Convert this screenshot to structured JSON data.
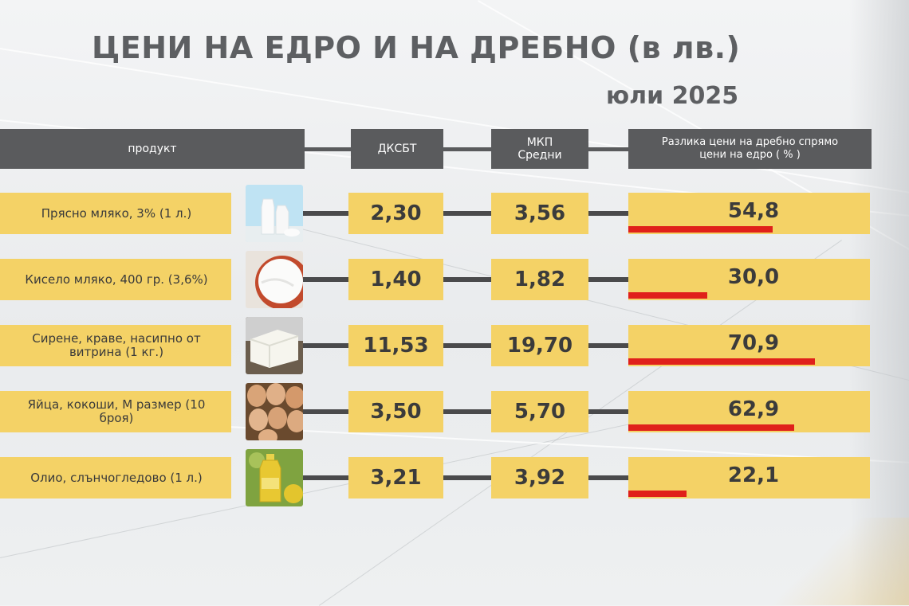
{
  "title": "ЦЕНИ НА ЕДРО И НА ДРЕБНО (в лв.)",
  "subtitle": "юли 2025",
  "headers": {
    "product": "продукт",
    "dksbt": "ДКСБТ",
    "mkp": "МКП Средни",
    "diff": "Разлика цени на дребно спрямо цени на едро ( % )"
  },
  "colors": {
    "header": "#5a5b5d",
    "cell": "#f4d266",
    "bar": "#e0201a",
    "title": "#5d5f62"
  },
  "chart_data": {
    "type": "table",
    "title": "ЦЕНИ НА ЕДРО И НА ДРЕБНО (в лв.)",
    "subtitle": "юли 2025",
    "columns": [
      "продукт",
      "ДКСБТ",
      "МКП Средни",
      "Разлика цени на дребно спрямо цени на едро ( % )"
    ],
    "rows": [
      {
        "product": "Прясно мляко, 3% (1 л.)",
        "icon": "milk-icon",
        "wholesale": "2,30",
        "retail": "3,56",
        "diff": "54,8",
        "diff_value": 54.8
      },
      {
        "product": "Кисело мляко, 400 гр. (3,6%)",
        "icon": "yogurt-icon",
        "wholesale": "1,40",
        "retail": "1,82",
        "diff": "30,0",
        "diff_value": 30.0
      },
      {
        "product": "Сирене, краве, насипно от витрина (1 кг.)",
        "icon": "cheese-icon",
        "wholesale": "11,53",
        "retail": "19,70",
        "diff": "70,9",
        "diff_value": 70.9
      },
      {
        "product": "Яйца, кокоши, М размер (10 броя)",
        "icon": "eggs-icon",
        "wholesale": "3,50",
        "retail": "5,70",
        "diff": "62,9",
        "diff_value": 62.9
      },
      {
        "product": "Олио, слънчогледово (1 л.)",
        "icon": "oil-icon",
        "wholesale": "3,21",
        "retail": "3,92",
        "diff": "22,1",
        "diff_value": 22.1
      }
    ]
  }
}
